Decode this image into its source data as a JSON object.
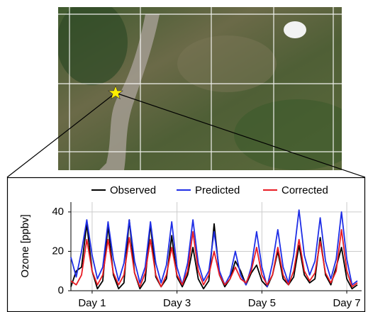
{
  "chart_data": {
    "type": "line",
    "ylabel": "Ozone [ppbv]",
    "legend": "upper center",
    "grid": true,
    "x": [
      0.5,
      0.625,
      0.75,
      0.875,
      1,
      1.125,
      1.25,
      1.375,
      1.5,
      1.625,
      1.75,
      1.875,
      2,
      2.125,
      2.25,
      2.375,
      2.5,
      2.625,
      2.75,
      2.875,
      3,
      3.125,
      3.25,
      3.375,
      3.5,
      3.625,
      3.75,
      3.875,
      4,
      4.125,
      4.25,
      4.375,
      4.5,
      4.625,
      4.75,
      4.875,
      5,
      5.125,
      5.25,
      5.375,
      5.5,
      5.625,
      5.75,
      5.875,
      6,
      6.125,
      6.25,
      6.375,
      6.5,
      6.625,
      6.75,
      6.875,
      7,
      7.125,
      7.25
    ],
    "xlim": [
      0.5,
      7.35
    ],
    "xticks": [
      {
        "value": 1,
        "label": "Day 1"
      },
      {
        "value": 3,
        "label": "Day 3"
      },
      {
        "value": 5,
        "label": "Day 5"
      },
      {
        "value": 7,
        "label": "Day 7"
      }
    ],
    "ylim": [
      0,
      45
    ],
    "yticks": [
      0,
      20,
      40
    ],
    "series": [
      {
        "name": "Observed",
        "color": "#000000",
        "values": [
          2,
          10,
          12,
          34,
          10,
          1,
          5,
          33,
          8,
          1,
          4,
          36,
          9,
          1,
          5,
          34,
          7,
          2,
          6,
          28,
          7,
          2,
          8,
          22,
          6,
          1,
          5,
          34,
          8,
          2,
          6,
          15,
          10,
          3,
          9,
          13,
          5,
          2,
          8,
          20,
          6,
          3,
          7,
          23,
          8,
          4,
          6,
          27,
          8,
          3,
          12,
          22,
          6,
          1,
          3
        ]
      },
      {
        "name": "Predicted",
        "color": "#1f2ee6",
        "values": [
          17,
          7,
          20,
          36,
          18,
          6,
          12,
          35,
          16,
          5,
          14,
          36,
          15,
          4,
          12,
          35,
          14,
          4,
          13,
          35,
          12,
          3,
          14,
          36,
          14,
          5,
          10,
          30,
          10,
          3,
          8,
          20,
          8,
          3,
          12,
          30,
          12,
          2,
          14,
          31,
          12,
          4,
          18,
          41,
          18,
          8,
          15,
          37,
          15,
          6,
          16,
          40,
          16,
          3,
          5
        ]
      },
      {
        "name": "Corrected",
        "color": "#e81c24",
        "values": [
          5,
          3,
          8,
          26,
          10,
          3,
          8,
          26,
          9,
          3,
          8,
          27,
          9,
          2,
          9,
          26,
          8,
          2,
          8,
          22,
          8,
          3,
          10,
          30,
          10,
          3,
          8,
          20,
          8,
          3,
          6,
          12,
          6,
          4,
          10,
          22,
          8,
          3,
          8,
          22,
          8,
          3,
          10,
          26,
          10,
          5,
          9,
          25,
          9,
          4,
          10,
          31,
          10,
          2,
          4
        ]
      }
    ]
  }
}
